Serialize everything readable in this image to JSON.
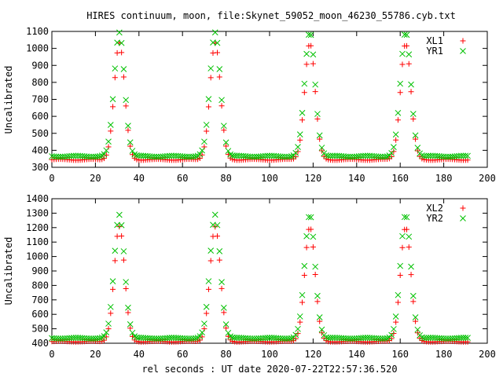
{
  "title": "HIRES continuum, moon, file:Skynet_59052_moon_46230_55786.cyb.txt",
  "xlabel": "rel seconds : UT date 2020-07-22T22:57:36.520",
  "colors": {
    "red": "#ff0000",
    "green": "#00c000"
  },
  "chart_data": [
    {
      "type": "scatter",
      "ylabel": "Uncalibrated",
      "xlim": [
        0,
        200
      ],
      "ylim": [
        300,
        1100
      ],
      "xticks": [
        0,
        20,
        40,
        60,
        80,
        100,
        120,
        140,
        160,
        180,
        200
      ],
      "yticks": [
        300,
        400,
        500,
        600,
        700,
        800,
        900,
        1000,
        1100
      ],
      "x_range": [
        0,
        191
      ],
      "x_step": 1,
      "peak_centers": [
        31,
        75,
        118.5,
        162.5
      ],
      "peak_sigma": 2.4,
      "legend_position": "top-right",
      "series": [
        {
          "name": "XL1",
          "marker": "+",
          "color": "#ff0000",
          "baseline": 345,
          "peak_value": 1030
        },
        {
          "name": "YR1",
          "marker": "x",
          "color": "#00c000",
          "baseline": 365,
          "peak_value": 1095
        }
      ]
    },
    {
      "type": "scatter",
      "ylabel": "Uncalibrated",
      "xlim": [
        0,
        200
      ],
      "ylim": [
        400,
        1400
      ],
      "xticks": [
        0,
        20,
        40,
        60,
        80,
        100,
        120,
        140,
        160,
        180,
        200
      ],
      "yticks": [
        400,
        500,
        600,
        700,
        800,
        900,
        1000,
        1100,
        1200,
        1300,
        1400
      ],
      "x_range": [
        0,
        191
      ],
      "x_step": 1,
      "peak_centers": [
        31,
        75,
        118.5,
        162.5
      ],
      "peak_sigma": 2.4,
      "legend_position": "top-right",
      "series": [
        {
          "name": "XL2",
          "marker": "+",
          "color": "#ff0000",
          "baseline": 412,
          "peak_value": 1205
        },
        {
          "name": "YR2",
          "marker": "x",
          "color": "#00c000",
          "baseline": 435,
          "peak_value": 1290
        }
      ]
    }
  ]
}
